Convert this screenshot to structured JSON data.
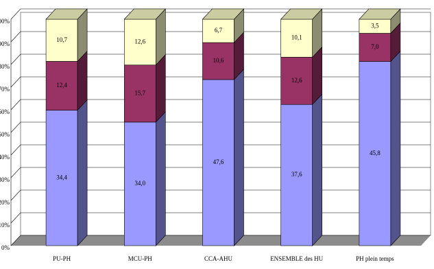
{
  "chart_data": {
    "type": "bar",
    "stacking": "percent",
    "three_d": true,
    "categories": [
      "PU-PH",
      "MCU-PH",
      "CCA-AHU",
      "ENSEMBLE des HU",
      "PH plein temps"
    ],
    "series": [
      {
        "color": "#9999ff",
        "values": [
          34.4,
          34.0,
          47.6,
          37.6,
          45.8
        ],
        "value_labels": [
          "34,4",
          "34,0",
          "47,6",
          "37,6",
          "45,8"
        ]
      },
      {
        "color": "#993366",
        "values": [
          12.4,
          15.7,
          10.6,
          12.6,
          7.0
        ],
        "value_labels": [
          "12,4",
          "15,7",
          "10,6",
          "12,6",
          "7,0"
        ]
      },
      {
        "color": "#ffffcc",
        "values": [
          10.7,
          12.6,
          6.7,
          10.1,
          3.5
        ],
        "value_labels": [
          "10,7",
          "12,6",
          "6,7",
          "10,1",
          "3,5"
        ]
      }
    ],
    "ylim": [
      0,
      100
    ],
    "yticks": [
      {
        "value": 0,
        "label": "0%"
      },
      {
        "value": 10,
        "label": "10%"
      },
      {
        "value": 20,
        "label": "20%"
      },
      {
        "value": 30,
        "label": "30%"
      },
      {
        "value": 40,
        "label": "40%"
      },
      {
        "value": 50,
        "label": "50%"
      },
      {
        "value": 60,
        "label": "60%"
      },
      {
        "value": 70,
        "label": "70%"
      },
      {
        "value": 80,
        "label": "80%"
      },
      {
        "value": 90,
        "label": "90%"
      },
      {
        "value": 100,
        "label": "100%"
      }
    ],
    "grid": true
  }
}
